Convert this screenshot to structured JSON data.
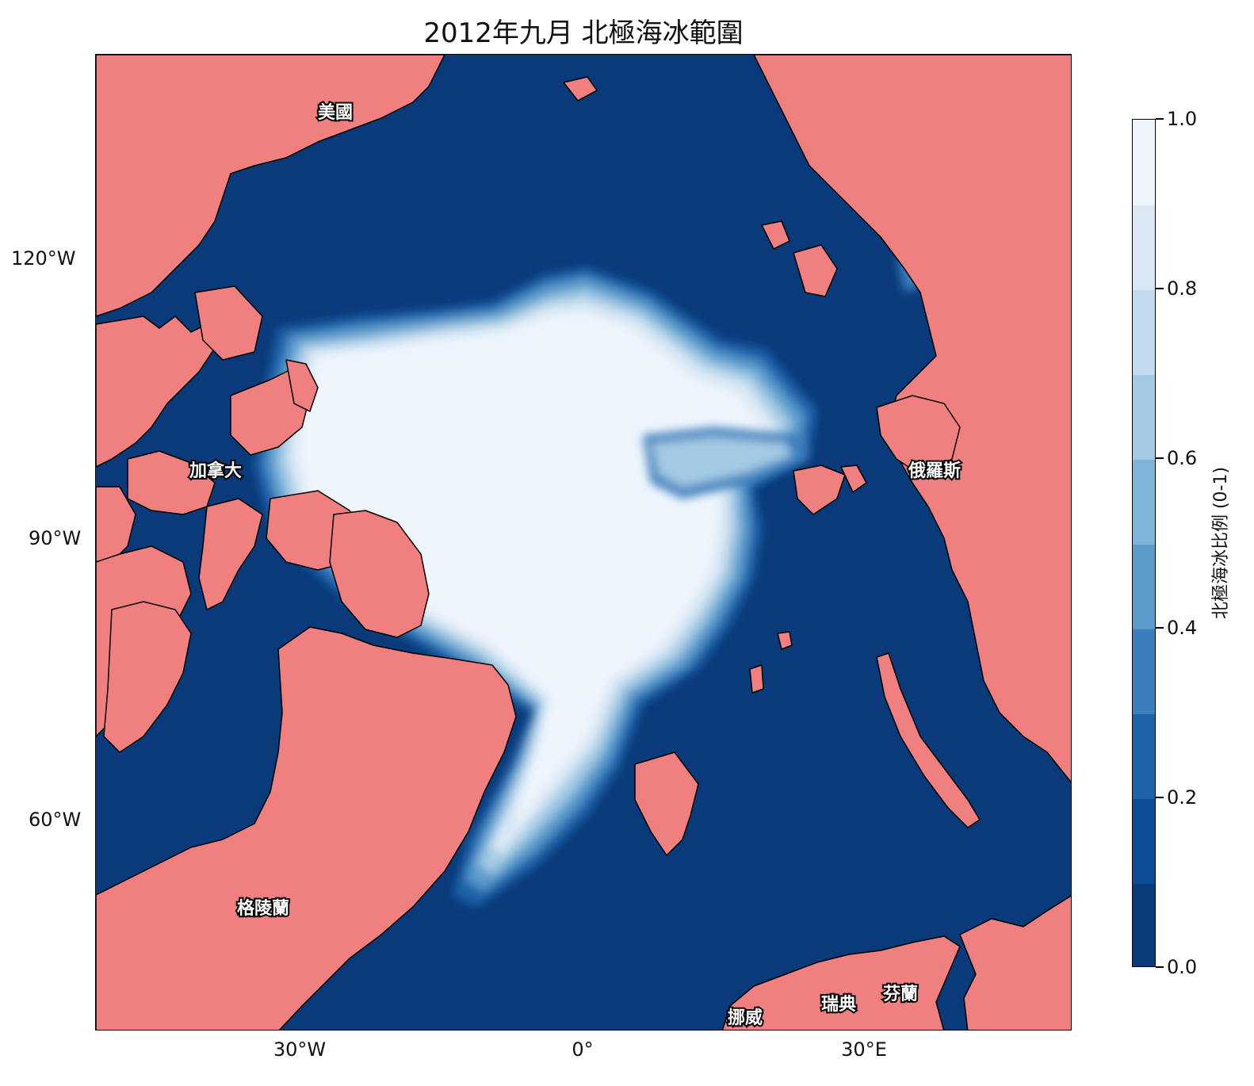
{
  "title": "2012年九月 北極海冰範圍",
  "colors": {
    "ocean": "#0a3a7a",
    "land": "#f08080",
    "coast": "#000000",
    "ice_full": "#eef5fd"
  },
  "axes": {
    "y_ticks": [
      "120°W",
      "90°W",
      "60°W"
    ],
    "x_ticks": [
      "30°W",
      "0°",
      "30°E"
    ]
  },
  "places": {
    "usa": "美國",
    "canada": "加拿大",
    "russia": "俄羅斯",
    "greenland": "格陵蘭",
    "norway": "挪威",
    "sweden": "瑞典",
    "finland": "芬蘭"
  },
  "colorbar": {
    "label": "北極海冰比例 (0-1)",
    "ticks": [
      "0.0",
      "0.2",
      "0.4",
      "0.6",
      "0.8",
      "1.0"
    ],
    "min": 0,
    "max": 1,
    "levels": 10,
    "palette": [
      "#0a3a7a",
      "#0d4c96",
      "#1d63aa",
      "#3a7ebd",
      "#5a9bcc",
      "#7fb3da",
      "#a3cae4",
      "#c3daee",
      "#dae8f5",
      "#eef5fd"
    ]
  }
}
